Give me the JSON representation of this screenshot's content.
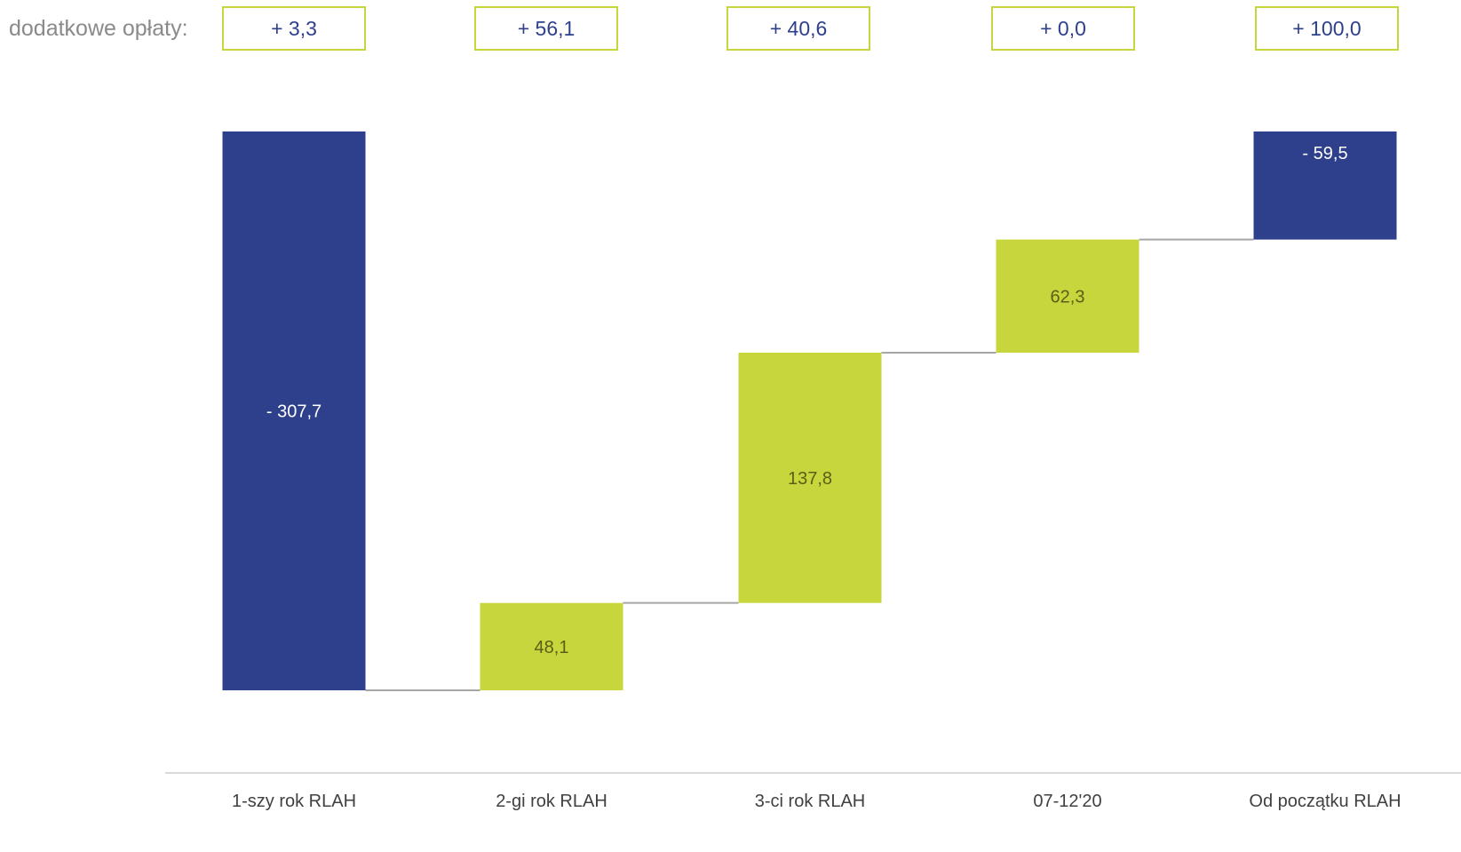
{
  "fees": {
    "label": "dodatkowe opłaty:",
    "items": [
      "+ 3,3",
      "+ 56,1",
      "+ 40,6",
      "+ 0,0",
      "+ 100,0"
    ]
  },
  "colors": {
    "negative": "#2e3f8c",
    "positive": "#c8d63d",
    "negative_label": "#ffffff",
    "positive_label": "#5b5e16",
    "connector": "#a6a6a6",
    "fee_border": "#c8d63d",
    "fee_text": "#2e3f8c"
  },
  "chart_data": {
    "type": "bar",
    "subtype": "waterfall",
    "categories": [
      "1-szy rok RLAH",
      "2-gi rok RLAH",
      "3-ci rok RLAH",
      "07-12'20",
      "Od początku RLAH"
    ],
    "values": [
      -307.7,
      48.1,
      137.8,
      62.3,
      -59.5
    ],
    "value_labels": [
      "- 307,7",
      "48,1",
      "137,8",
      "62,3",
      "- 59,5"
    ],
    "bar_kind": [
      "total",
      "delta",
      "delta",
      "delta",
      "total"
    ],
    "title": "",
    "xlabel": "",
    "ylabel": "",
    "ylim": [
      -315,
      0
    ],
    "grid": false,
    "legend": "none"
  }
}
